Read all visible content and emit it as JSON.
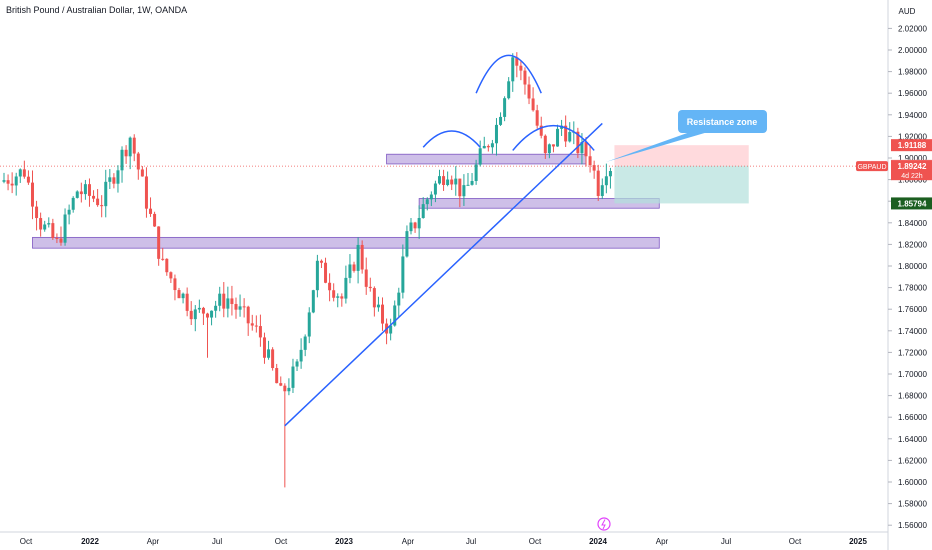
{
  "title": "British Pound / Australian Dollar, 1W, OANDA",
  "currency": "AUD",
  "colors": {
    "up": "#26a69a",
    "down": "#ef5350",
    "trendline": "#2962ff",
    "zone": "#b39ddb",
    "zone_border": "#7e57c2",
    "tp_zone": "#b2dfdb",
    "sl_zone": "#ffcdd2",
    "callout": "#64b5f6"
  },
  "chart_data": {
    "type": "candlestick",
    "title": "British Pound / Australian Dollar, 1W, OANDA",
    "ylim": [
      1.55,
      2.03
    ],
    "y_ticks": [
      "2.02000",
      "2.00000",
      "1.98000",
      "1.96000",
      "1.94000",
      "1.92000",
      "1.90000",
      "1.88000",
      "1.86000",
      "1.84000",
      "1.82000",
      "1.80000",
      "1.78000",
      "1.76000",
      "1.74000",
      "1.72000",
      "1.70000",
      "1.68000",
      "1.66000",
      "1.64000",
      "1.62000",
      "1.60000",
      "1.58000",
      "1.56000"
    ],
    "x_ticks": [
      "Oct",
      "2022",
      "Apr",
      "Jul",
      "Oct",
      "2023",
      "Apr",
      "Jul",
      "Oct",
      "2024",
      "Apr",
      "Jul",
      "Oct",
      "2025"
    ],
    "anchors": [
      {
        "t": 0,
        "v": 1.878
      },
      {
        "t": 6,
        "v": 1.888
      },
      {
        "t": 10,
        "v": 1.84
      },
      {
        "t": 14,
        "v": 1.82
      },
      {
        "t": 19,
        "v": 1.87
      },
      {
        "t": 25,
        "v": 1.86
      },
      {
        "t": 32,
        "v": 1.92
      },
      {
        "t": 40,
        "v": 1.8
      },
      {
        "t": 48,
        "v": 1.755
      },
      {
        "t": 56,
        "v": 1.77
      },
      {
        "t": 64,
        "v": 1.735
      },
      {
        "t": 69,
        "v": 1.68
      },
      {
        "t": 73,
        "v": 1.705
      },
      {
        "t": 78,
        "v": 1.8
      },
      {
        "t": 84,
        "v": 1.77
      },
      {
        "t": 88,
        "v": 1.815
      },
      {
        "t": 92,
        "v": 1.76
      },
      {
        "t": 96,
        "v": 1.74
      },
      {
        "t": 100,
        "v": 1.825
      },
      {
        "t": 106,
        "v": 1.87
      },
      {
        "t": 110,
        "v": 1.89
      },
      {
        "t": 114,
        "v": 1.865
      },
      {
        "t": 118,
        "v": 1.9
      },
      {
        "t": 122,
        "v": 1.93
      },
      {
        "t": 126,
        "v": 1.995
      },
      {
        "t": 130,
        "v": 1.96
      },
      {
        "t": 134,
        "v": 1.9
      },
      {
        "t": 138,
        "v": 1.93
      },
      {
        "t": 142,
        "v": 1.91
      },
      {
        "t": 145,
        "v": 1.9
      },
      {
        "t": 147,
        "v": 1.873
      },
      {
        "t": 149,
        "v": 1.893
      }
    ],
    "n_candles": 150,
    "spikes": [
      {
        "t": 69,
        "low": 1.595
      },
      {
        "t": 32,
        "high": 1.922
      },
      {
        "t": 50,
        "low": 1.715
      },
      {
        "t": 126,
        "high": 1.998
      }
    ],
    "horizontal_line": 1.8925,
    "current_price": "1.89242",
    "countdown": "4d 22h",
    "symbol": "GBPAUD",
    "price_labels": {
      "stop_loss": "1.91188",
      "entry": "1.89274",
      "current": "1.89242",
      "target": "1.85794"
    },
    "zones": [
      {
        "name": "resistance",
        "t0": 94,
        "t1": 143,
        "y_top": 1.9035,
        "y_bottom": 1.8945
      },
      {
        "name": "support-upper",
        "t0": 102,
        "t1": 161,
        "y_top": 1.8625,
        "y_bottom": 1.8535
      },
      {
        "name": "support-lower",
        "t0": 7,
        "t1": 161,
        "y_top": 1.8265,
        "y_bottom": 1.8165
      }
    ],
    "trendline": {
      "t0": 69,
      "v0": 1.652,
      "t1": 147,
      "v1": 1.932
    },
    "position": {
      "t0": 149,
      "t1": 182,
      "stop": 1.91188,
      "entry": 1.89274,
      "target": 1.85794
    },
    "annotation": "Resistance zone",
    "head_and_shoulders_arcs": [
      {
        "t_center": 110,
        "width": 7,
        "top": 1.925,
        "bottom": 1.91
      },
      {
        "t_center": 124,
        "width": 8,
        "top": 1.995,
        "bottom": 1.96
      },
      {
        "t_center": 135,
        "width": 10,
        "top": 1.93,
        "bottom": 1.907
      }
    ]
  }
}
